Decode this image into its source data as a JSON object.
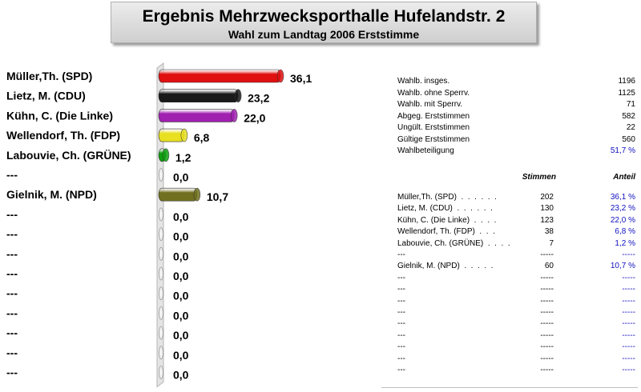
{
  "title": "Ergebnis Mehrzwecksporthalle Hufelandstr. 2",
  "subtitle": "Wahl zum Landtag 2006 Erststimme",
  "chart_data": {
    "type": "bar",
    "orientation": "horizontal",
    "categories": [
      "Müller,Th. (SPD)",
      "Lietz, M. (CDU)",
      "Kühn, C. (Die Linke)",
      "Wellendorf, Th. (FDP)",
      "Labouvie, Ch. (GRÜNE)",
      "---",
      "Gielnik, M. (NPD)",
      "---",
      "---",
      "---",
      "---",
      "---",
      "---",
      "---",
      "---",
      "---"
    ],
    "values": [
      36.1,
      23.2,
      22.0,
      6.8,
      1.2,
      0.0,
      10.7,
      0.0,
      0.0,
      0.0,
      0.0,
      0.0,
      0.0,
      0.0,
      0.0,
      0.0
    ],
    "value_labels": [
      "36,1",
      "23,2",
      "22,0",
      "6,8",
      "1,2",
      "0,0",
      "10,7",
      "0,0",
      "0,0",
      "0,0",
      "0,0",
      "0,0",
      "0,0",
      "0,0",
      "0,0",
      "0,0"
    ],
    "colors": [
      "#e01010",
      "#1a1a1a",
      "#a020b0",
      "#e8e020",
      "#10a010",
      "#cccccc",
      "#707020",
      "#cccccc",
      "#cccccc",
      "#cccccc",
      "#cccccc",
      "#cccccc",
      "#cccccc",
      "#cccccc",
      "#cccccc",
      "#cccccc"
    ],
    "xlim": [
      0,
      40
    ],
    "grid": false
  },
  "stats": [
    {
      "label": "Wahlb. insges.",
      "value": "1196"
    },
    {
      "label": "Wahlb. ohne Sperrv.",
      "value": "1125"
    },
    {
      "label": "Wahlb. mit Sperrv.",
      "value": "71"
    },
    {
      "label": "Abgeg. Erststimmen",
      "value": "582"
    },
    {
      "label": "Ungült. Erststimmen",
      "value": "22"
    },
    {
      "label": "Gültige Erststimmen",
      "value": "560"
    }
  ],
  "turnout": {
    "label": "Wahlbeteiligung",
    "value": "51,7 %"
  },
  "table": {
    "col_votes": "Stimmen",
    "col_share": "Anteil",
    "rows": [
      {
        "name": "Müller,Th. (SPD)  .  .  .  .  .  .",
        "votes": "202",
        "share": "36,1 %"
      },
      {
        "name": "Lietz, M. (CDU)  .  .  .  .  .  .",
        "votes": "130",
        "share": "23,2 %"
      },
      {
        "name": "Kühn, C. (Die Linke)  .  .  .  .",
        "votes": "123",
        "share": "22,0 %"
      },
      {
        "name": "Wellendorf, Th. (FDP)  .  .  .",
        "votes": "38",
        "share": "6,8 %"
      },
      {
        "name": "Labouvie, Ch. (GRÜNE)  .  .  .  .",
        "votes": "7",
        "share": "1,2 %"
      },
      {
        "name": "---",
        "votes": "-----",
        "share": "-----"
      },
      {
        "name": "Gielnik, M. (NPD)  .  .  .  .  .",
        "votes": "60",
        "share": "10,7 %"
      },
      {
        "name": "---",
        "votes": "-----",
        "share": "-----"
      },
      {
        "name": "---",
        "votes": "-----",
        "share": "-----"
      },
      {
        "name": "---",
        "votes": "-----",
        "share": "-----"
      },
      {
        "name": "---",
        "votes": "-----",
        "share": "-----"
      },
      {
        "name": "---",
        "votes": "-----",
        "share": "-----"
      },
      {
        "name": "---",
        "votes": "-----",
        "share": "-----"
      },
      {
        "name": "---",
        "votes": "-----",
        "share": "-----"
      },
      {
        "name": "---",
        "votes": "-----",
        "share": "-----"
      },
      {
        "name": "---",
        "votes": "-----",
        "share": "-----"
      }
    ]
  }
}
